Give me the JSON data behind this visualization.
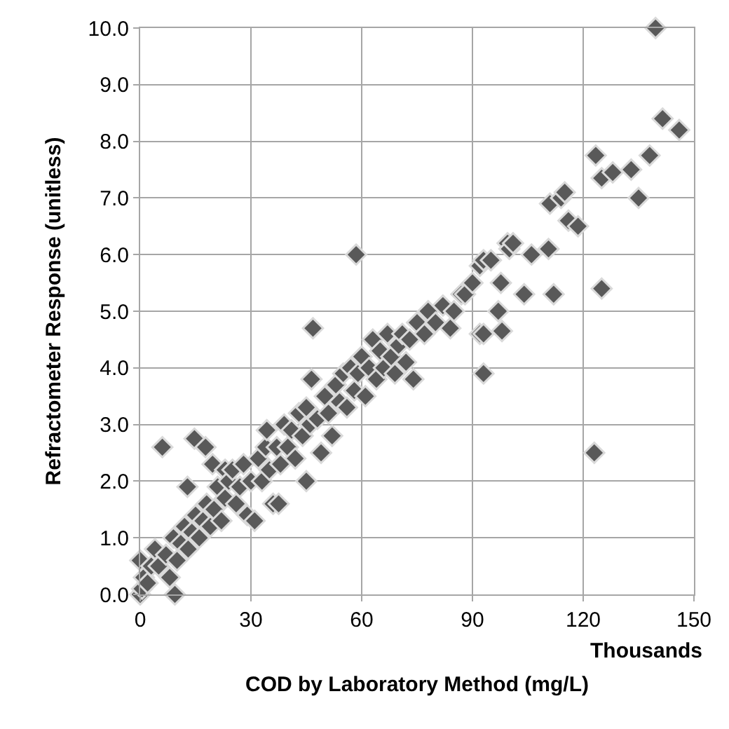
{
  "chart_data": {
    "type": "scatter",
    "xlabel": "COD by Laboratory Method (mg/L)",
    "ylabel": "Refractometer Response (unitless)",
    "annotations": [
      "Thousands"
    ],
    "xlim": [
      0,
      150
    ],
    "xticks": [
      0,
      30,
      60,
      90,
      120,
      150
    ],
    "ylim": [
      0,
      10
    ],
    "yticks": [
      {
        "value": 0,
        "label": "0.0"
      },
      {
        "value": 1,
        "label": "1.0"
      },
      {
        "value": 2,
        "label": "2.0"
      },
      {
        "value": 3,
        "label": "3.0"
      },
      {
        "value": 4,
        "label": "4.0"
      },
      {
        "value": 5,
        "label": "5.0"
      },
      {
        "value": 6,
        "label": "6.0"
      },
      {
        "value": 7,
        "label": "7.0"
      },
      {
        "value": 8,
        "label": "8.0"
      },
      {
        "value": 9,
        "label": "9.0"
      },
      {
        "value": 10,
        "label": "10.0"
      }
    ],
    "grid": true,
    "marker": "diamond",
    "series": [
      {
        "color": "#595959",
        "x": [
          0,
          0.5,
          1,
          0,
          2,
          3,
          4,
          5,
          6,
          7,
          8,
          9,
          9.4,
          10,
          11,
          12,
          12.8,
          13,
          14,
          14.7,
          15,
          16,
          17,
          17.7,
          18,
          19,
          19.6,
          20,
          21,
          22,
          23,
          23,
          24,
          25,
          26,
          27,
          28,
          29,
          30,
          31,
          32,
          33,
          34,
          34.3,
          35,
          36,
          37,
          37.5,
          38,
          39,
          40,
          41,
          42,
          43,
          44,
          45,
          45,
          46,
          46.4,
          46.8,
          48,
          49,
          50,
          51,
          52,
          53,
          54,
          55,
          56,
          57,
          58,
          58.5,
          59,
          60,
          61,
          62,
          63,
          64,
          65,
          66,
          67,
          68,
          69,
          70,
          71,
          72,
          73,
          74,
          75,
          77,
          78,
          80,
          82,
          84,
          85,
          87,
          88,
          90,
          92,
          92,
          93,
          93,
          93,
          95,
          97,
          97.7,
          98,
          99.5,
          100,
          101,
          104,
          106,
          110.6,
          111,
          112,
          114,
          115,
          116,
          118.6,
          123.4,
          123,
          125,
          125,
          128,
          133,
          135,
          138,
          139.6,
          141.5,
          146
        ],
        "values": [
          0,
          0.1,
          0.3,
          0.6,
          0.2,
          0.5,
          0.8,
          0.5,
          2.6,
          0.7,
          0.3,
          1.0,
          0.0,
          0.6,
          0.9,
          1.2,
          1.9,
          0.8,
          1.1,
          2.75,
          1.4,
          1.0,
          1.3,
          2.6,
          1.6,
          1.2,
          2.3,
          1.5,
          1.9,
          1.3,
          1.7,
          2.2,
          2.0,
          2.2,
          1.6,
          1.9,
          2.3,
          1.4,
          2.0,
          1.3,
          2.4,
          2.0,
          2.6,
          2.9,
          2.2,
          1.6,
          2.6,
          1.6,
          2.3,
          3.0,
          2.6,
          2.9,
          2.4,
          3.2,
          2.8,
          3.3,
          2.0,
          3.0,
          3.8,
          4.7,
          3.1,
          2.5,
          3.5,
          3.2,
          2.8,
          3.7,
          3.4,
          3.9,
          3.3,
          4.0,
          3.6,
          6.0,
          3.9,
          4.2,
          3.5,
          4.0,
          4.5,
          3.8,
          4.3,
          4.0,
          4.6,
          4.2,
          3.9,
          4.4,
          4.6,
          4.1,
          4.5,
          3.8,
          4.8,
          4.6,
          5.0,
          4.8,
          5.1,
          4.7,
          5.0,
          5.3,
          5.3,
          5.5,
          4.6,
          5.8,
          3.9,
          5.9,
          4.6,
          5.9,
          5.0,
          5.5,
          4.65,
          6.2,
          6.1,
          6.2,
          5.3,
          6.0,
          6.1,
          6.9,
          5.3,
          7.0,
          7.1,
          6.6,
          6.5,
          7.75,
          2.5,
          5.4,
          7.35,
          7.45,
          7.5,
          7.0,
          7.75,
          10.0,
          8.4,
          8.2
        ]
      }
    ]
  }
}
